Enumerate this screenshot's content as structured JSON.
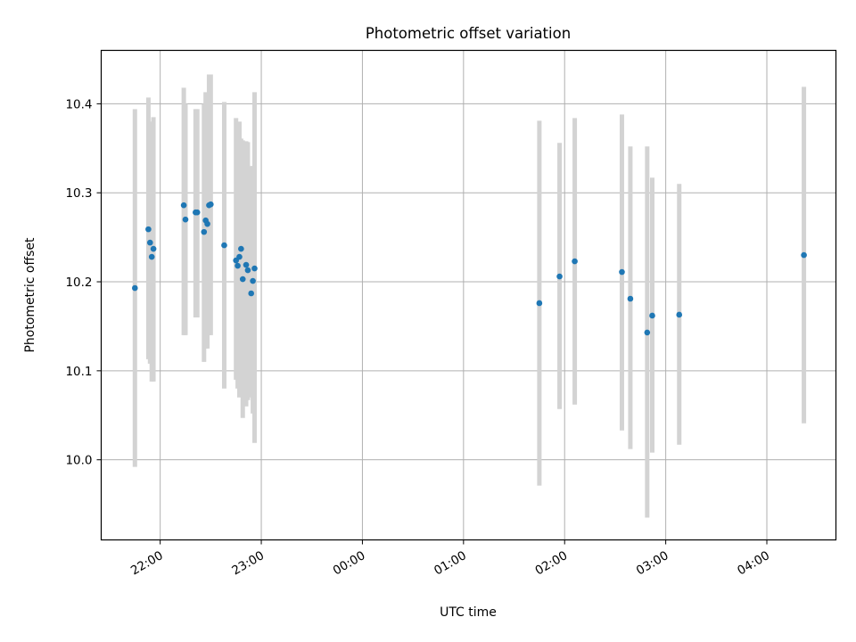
{
  "chart_data": {
    "type": "scatter",
    "title": "Photometric offset variation",
    "xlabel": "UTC time",
    "ylabel": "Photometric offset",
    "x_axis": "time",
    "xlim": [
      "21:25",
      "04:41"
    ],
    "ylim": [
      9.91,
      10.46
    ],
    "x_ticks": [
      "22:00",
      "23:00",
      "00:00",
      "01:00",
      "02:00",
      "03:00",
      "04:00"
    ],
    "y_ticks": [
      "10.0",
      "10.1",
      "10.2",
      "10.3",
      "10.4"
    ],
    "grid": true,
    "point_color": "#1f77b4",
    "errorbar_color": "#d3d3d3",
    "points": [
      {
        "t": "21:45",
        "y": 10.193,
        "lo": 9.992,
        "hi": 10.394
      },
      {
        "t": "21:53",
        "y": 10.259,
        "lo": 10.113,
        "hi": 10.407
      },
      {
        "t": "21:54",
        "y": 10.244,
        "lo": 10.108,
        "hi": 10.38
      },
      {
        "t": "21:55",
        "y": 10.228,
        "lo": 10.088,
        "hi": 10.368
      },
      {
        "t": "21:56",
        "y": 10.237,
        "lo": 10.088,
        "hi": 10.385
      },
      {
        "t": "22:14",
        "y": 10.286,
        "lo": 10.14,
        "hi": 10.418
      },
      {
        "t": "22:15",
        "y": 10.27,
        "lo": 10.14,
        "hi": 10.4
      },
      {
        "t": "22:21",
        "y": 10.278,
        "lo": 10.16,
        "hi": 10.394
      },
      {
        "t": "22:22",
        "y": 10.278,
        "lo": 10.16,
        "hi": 10.394
      },
      {
        "t": "22:26",
        "y": 10.256,
        "lo": 10.11,
        "hi": 10.4
      },
      {
        "t": "22:27",
        "y": 10.269,
        "lo": 10.125,
        "hi": 10.413
      },
      {
        "t": "22:28",
        "y": 10.265,
        "lo": 10.125,
        "hi": 10.405
      },
      {
        "t": "22:29",
        "y": 10.286,
        "lo": 10.14,
        "hi": 10.433
      },
      {
        "t": "22:30",
        "y": 10.287,
        "lo": 10.14,
        "hi": 10.433
      },
      {
        "t": "22:38",
        "y": 10.241,
        "lo": 10.08,
        "hi": 10.402
      },
      {
        "t": "22:45",
        "y": 10.224,
        "lo": 10.09,
        "hi": 10.384
      },
      {
        "t": "22:46",
        "y": 10.218,
        "lo": 10.08,
        "hi": 10.37
      },
      {
        "t": "22:47",
        "y": 10.228,
        "lo": 10.07,
        "hi": 10.38
      },
      {
        "t": "22:48",
        "y": 10.237,
        "lo": 10.095,
        "hi": 10.361
      },
      {
        "t": "22:49",
        "y": 10.203,
        "lo": 10.047,
        "hi": 10.359
      },
      {
        "t": "22:51",
        "y": 10.219,
        "lo": 10.06,
        "hi": 10.358
      },
      {
        "t": "22:52",
        "y": 10.213,
        "lo": 10.067,
        "hi": 10.357
      },
      {
        "t": "22:54",
        "y": 10.187,
        "lo": 10.07,
        "hi": 10.33
      },
      {
        "t": "22:55",
        "y": 10.201,
        "lo": 10.052,
        "hi": 10.33
      },
      {
        "t": "22:56",
        "y": 10.215,
        "lo": 10.019,
        "hi": 10.413
      },
      {
        "t": "01:45",
        "y": 10.176,
        "lo": 9.971,
        "hi": 10.381
      },
      {
        "t": "01:57",
        "y": 10.206,
        "lo": 10.057,
        "hi": 10.356
      },
      {
        "t": "02:06",
        "y": 10.223,
        "lo": 10.062,
        "hi": 10.384
      },
      {
        "t": "02:34",
        "y": 10.211,
        "lo": 10.033,
        "hi": 10.388
      },
      {
        "t": "02:39",
        "y": 10.181,
        "lo": 10.012,
        "hi": 10.352
      },
      {
        "t": "02:49",
        "y": 10.143,
        "lo": 9.935,
        "hi": 10.352
      },
      {
        "t": "02:52",
        "y": 10.162,
        "lo": 10.008,
        "hi": 10.317
      },
      {
        "t": "03:08",
        "y": 10.163,
        "lo": 10.017,
        "hi": 10.31
      },
      {
        "t": "04:22",
        "y": 10.23,
        "lo": 10.041,
        "hi": 10.419
      }
    ]
  }
}
